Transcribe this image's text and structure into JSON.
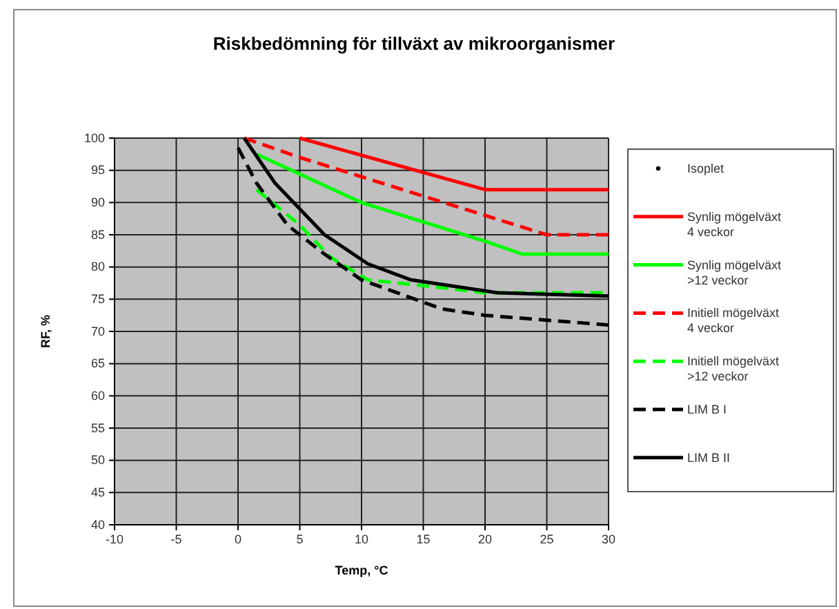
{
  "chart_data": {
    "type": "line",
    "title": "Riskbedömning för tillväxt av mikroorganismer",
    "xlabel": "Temp, °C",
    "ylabel": "RF, %",
    "xlim": [
      -10,
      30
    ],
    "xticks": [
      -10,
      -5,
      0,
      5,
      10,
      15,
      20,
      25,
      30
    ],
    "ylim": [
      40,
      100
    ],
    "yticks": [
      40,
      45,
      50,
      55,
      60,
      65,
      70,
      75,
      80,
      85,
      90,
      95,
      100
    ],
    "grid": true,
    "legend": "right",
    "series": [
      {
        "name": "Isoplet",
        "type": "scatter",
        "marker": "circle",
        "color": "#000000"
      },
      {
        "name": "Synlig mögelväxt\n4 veckor",
        "color": "#ff0000",
        "line_style": "solid",
        "x": [
          5,
          20,
          30
        ],
        "values": [
          100,
          92,
          92
        ]
      },
      {
        "name": "Synlig mögelväxt\n>12 veckor",
        "color": "#00ff00",
        "line_style": "solid",
        "x": [
          1.5,
          10,
          15,
          20,
          23,
          30
        ],
        "values": [
          97.5,
          90,
          87,
          84,
          82,
          82
        ]
      },
      {
        "name": "Initiell mögelväxt\n4 veckor",
        "color": "#ff0000",
        "line_style": "dashed",
        "x": [
          0.5,
          5,
          10,
          15,
          20,
          25,
          30
        ],
        "values": [
          100,
          97,
          94,
          91,
          88,
          85,
          85
        ]
      },
      {
        "name": "Initiell mögelväxt\n>12 veckor",
        "color": "#00ff00",
        "line_style": "dashed",
        "x": [
          1.5,
          5,
          7.5,
          10.5,
          15.5,
          20,
          30
        ],
        "values": [
          92,
          86.5,
          81.5,
          78,
          77,
          76,
          76
        ]
      },
      {
        "name": "LIM B I",
        "color": "#000000",
        "line_style": "dashed",
        "x": [
          0,
          1.5,
          4,
          7,
          10,
          16.5,
          20,
          30
        ],
        "values": [
          98.5,
          93,
          86.5,
          82,
          78,
          73.5,
          72.5,
          71
        ]
      },
      {
        "name": "LIM B II",
        "color": "#000000",
        "line_style": "solid",
        "x": [
          0.5,
          3,
          7,
          10.5,
          14,
          21,
          30
        ],
        "values": [
          100,
          93,
          85,
          80.5,
          78,
          76,
          75.5
        ]
      }
    ]
  }
}
